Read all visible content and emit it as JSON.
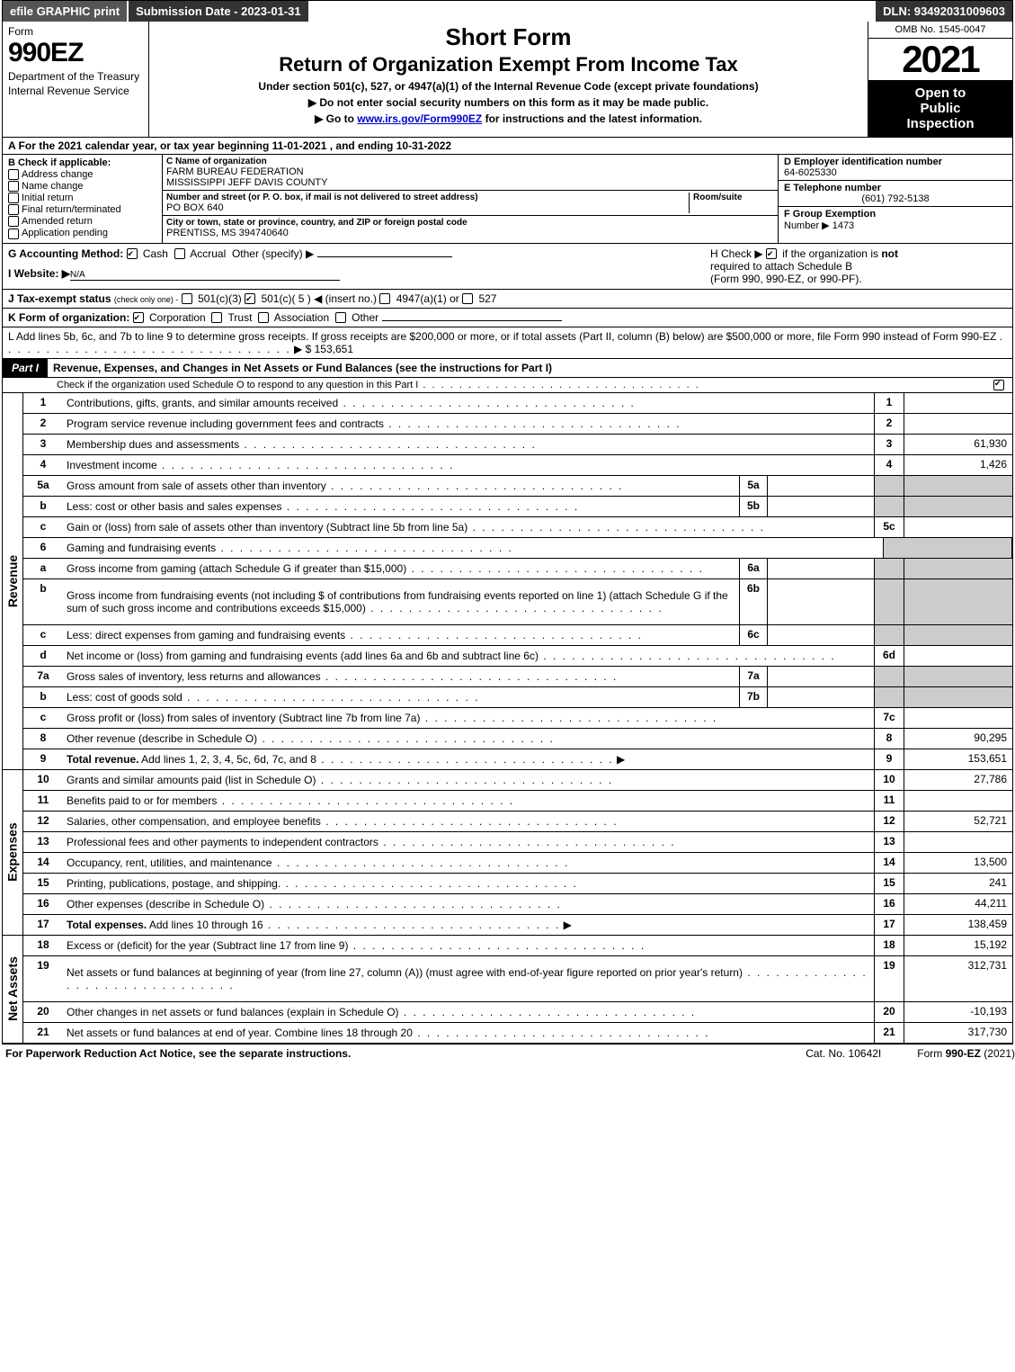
{
  "topbar": {
    "efile": "efile GRAPHIC print",
    "submission": "Submission Date - 2023-01-31",
    "dln": "DLN: 93492031009603"
  },
  "header": {
    "form_word": "Form",
    "form_num": "990EZ",
    "dept1": "Department of the Treasury",
    "dept2": "Internal Revenue Service",
    "short": "Short Form",
    "title": "Return of Organization Exempt From Income Tax",
    "under": "Under section 501(c), 527, or 4947(a)(1) of the Internal Revenue Code (except private foundations)",
    "bullet1": "▶ Do not enter social security numbers on this form as it may be made public.",
    "bullet2_pre": "▶ Go to ",
    "bullet2_link": "www.irs.gov/Form990EZ",
    "bullet2_post": " for instructions and the latest information.",
    "omb": "OMB No. 1545-0047",
    "year": "2021",
    "open1": "Open to",
    "open2": "Public",
    "open3": "Inspection"
  },
  "row_a": "A  For the 2021 calendar year, or tax year beginning 11-01-2021 , and ending 10-31-2022",
  "col_b": {
    "hdr": "B  Check if applicable:",
    "opts": [
      "Address change",
      "Name change",
      "Initial return",
      "Final return/terminated",
      "Amended return",
      "Application pending"
    ]
  },
  "col_c": {
    "name_lbl": "C Name of organization",
    "name1": "FARM BUREAU FEDERATION",
    "name2": "MISSISSIPPI JEFF DAVIS COUNTY",
    "street_lbl": "Number and street (or P. O. box, if mail is not delivered to street address)",
    "room_lbl": "Room/suite",
    "street": "PO BOX 640",
    "city_lbl": "City or town, state or province, country, and ZIP or foreign postal code",
    "city": "PRENTISS, MS  394740640"
  },
  "col_def": {
    "d_lbl": "D Employer identification number",
    "d_val": "64-6025330",
    "e_lbl": "E Telephone number",
    "e_val": "(601) 792-5138",
    "f_lbl": "F Group Exemption",
    "f_lbl2": "Number  ▶",
    "f_val": "1473"
  },
  "row_g": {
    "label": "G Accounting Method:",
    "cash": "Cash",
    "accrual": "Accrual",
    "other": "Other (specify) ▶"
  },
  "row_h": {
    "text1": "H  Check ▶ ",
    "text2": " if the organization is ",
    "not": "not",
    "text3": "required to attach Schedule B",
    "text4": "(Form 990, 990-EZ, or 990-PF)."
  },
  "row_i": {
    "label": "I Website: ▶",
    "val": "N/A"
  },
  "row_j": {
    "label": "J Tax-exempt status",
    "small": "(check only one) -",
    "opt1": "501(c)(3)",
    "opt2": "501(c)( 5 ) ◀ (insert no.)",
    "opt3": "4947(a)(1) or",
    "opt4": "527"
  },
  "row_k": {
    "label": "K Form of organization:",
    "opts": [
      "Corporation",
      "Trust",
      "Association",
      "Other"
    ]
  },
  "row_l": {
    "text": "L Add lines 5b, 6c, and 7b to line 9 to determine gross receipts. If gross receipts are $200,000 or more, or if total assets (Part II, column (B) below) are $500,000 or more, file Form 990 instead of Form 990-EZ",
    "amount": "$ 153,651"
  },
  "part1": {
    "label": "Part I",
    "title": "Revenue, Expenses, and Changes in Net Assets or Fund Balances (see the instructions for Part I)",
    "sub": "Check if the organization used Schedule O to respond to any question in this Part I"
  },
  "side_labels": {
    "revenue": "Revenue",
    "expenses": "Expenses",
    "netassets": "Net Assets"
  },
  "revenue_lines": [
    {
      "n": "1",
      "d": "Contributions, gifts, grants, and similar amounts received",
      "rn": "1",
      "rv": ""
    },
    {
      "n": "2",
      "d": "Program service revenue including government fees and contracts",
      "rn": "2",
      "rv": ""
    },
    {
      "n": "3",
      "d": "Membership dues and assessments",
      "rn": "3",
      "rv": "61,930"
    },
    {
      "n": "4",
      "d": "Investment income",
      "rn": "4",
      "rv": "1,426"
    },
    {
      "n": "5a",
      "d": "Gross amount from sale of assets other than inventory",
      "mn": "5a",
      "mv": "",
      "shade": true
    },
    {
      "n": "b",
      "d": "Less: cost or other basis and sales expenses",
      "mn": "5b",
      "mv": "",
      "shade": true
    },
    {
      "n": "c",
      "d": "Gain or (loss) from sale of assets other than inventory (Subtract line 5b from line 5a)",
      "rn": "5c",
      "rv": ""
    },
    {
      "n": "6",
      "d": "Gaming and fundraising events",
      "shade": true,
      "noboxes": true
    },
    {
      "n": "a",
      "d": "Gross income from gaming (attach Schedule G if greater than $15,000)",
      "mn": "6a",
      "mv": "",
      "shade": true
    },
    {
      "n": "b",
      "d": "Gross income from fundraising events (not including $                    of contributions from fundraising events reported on line 1) (attach Schedule G if the sum of such gross income and contributions exceeds $15,000)",
      "mn": "6b",
      "mv": "",
      "shade": true,
      "tall": true
    },
    {
      "n": "c",
      "d": "Less: direct expenses from gaming and fundraising events",
      "mn": "6c",
      "mv": "",
      "shade": true
    },
    {
      "n": "d",
      "d": "Net income or (loss) from gaming and fundraising events (add lines 6a and 6b and subtract line 6c)",
      "rn": "6d",
      "rv": ""
    },
    {
      "n": "7a",
      "d": "Gross sales of inventory, less returns and allowances",
      "mn": "7a",
      "mv": "",
      "shade": true
    },
    {
      "n": "b",
      "d": "Less: cost of goods sold",
      "mn": "7b",
      "mv": "",
      "shade": true
    },
    {
      "n": "c",
      "d": "Gross profit or (loss) from sales of inventory (Subtract line 7b from line 7a)",
      "rn": "7c",
      "rv": ""
    },
    {
      "n": "8",
      "d": "Other revenue (describe in Schedule O)",
      "rn": "8",
      "rv": "90,295"
    },
    {
      "n": "9",
      "d": "Total revenue. Add lines 1, 2, 3, 4, 5c, 6d, 7c, and 8",
      "rn": "9",
      "rv": "153,651",
      "bold": true,
      "arrow": true
    }
  ],
  "expense_lines": [
    {
      "n": "10",
      "d": "Grants and similar amounts paid (list in Schedule O)",
      "rn": "10",
      "rv": "27,786"
    },
    {
      "n": "11",
      "d": "Benefits paid to or for members",
      "rn": "11",
      "rv": ""
    },
    {
      "n": "12",
      "d": "Salaries, other compensation, and employee benefits",
      "rn": "12",
      "rv": "52,721"
    },
    {
      "n": "13",
      "d": "Professional fees and other payments to independent contractors",
      "rn": "13",
      "rv": ""
    },
    {
      "n": "14",
      "d": "Occupancy, rent, utilities, and maintenance",
      "rn": "14",
      "rv": "13,500"
    },
    {
      "n": "15",
      "d": "Printing, publications, postage, and shipping.",
      "rn": "15",
      "rv": "241"
    },
    {
      "n": "16",
      "d": "Other expenses (describe in Schedule O)",
      "rn": "16",
      "rv": "44,211"
    },
    {
      "n": "17",
      "d": "Total expenses. Add lines 10 through 16",
      "rn": "17",
      "rv": "138,459",
      "bold": true,
      "arrow": true
    }
  ],
  "netasset_lines": [
    {
      "n": "18",
      "d": "Excess or (deficit) for the year (Subtract line 17 from line 9)",
      "rn": "18",
      "rv": "15,192"
    },
    {
      "n": "19",
      "d": "Net assets or fund balances at beginning of year (from line 27, column (A)) (must agree with end-of-year figure reported on prior year's return)",
      "rn": "19",
      "rv": "312,731",
      "tall": true
    },
    {
      "n": "20",
      "d": "Other changes in net assets or fund balances (explain in Schedule O)",
      "rn": "20",
      "rv": "-10,193"
    },
    {
      "n": "21",
      "d": "Net assets or fund balances at end of year. Combine lines 18 through 20",
      "rn": "21",
      "rv": "317,730"
    }
  ],
  "footer": {
    "left": "For Paperwork Reduction Act Notice, see the separate instructions.",
    "center": "Cat. No. 10642I",
    "right_pre": "Form ",
    "right_bold": "990-EZ",
    "right_post": " (2021)"
  }
}
